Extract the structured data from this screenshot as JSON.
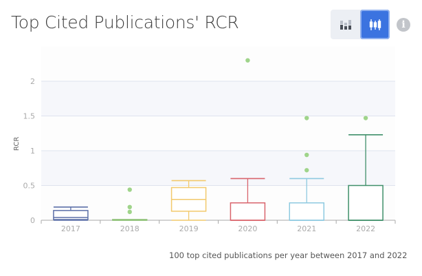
{
  "header": {
    "title": "Top Cited Publications' RCR",
    "toggle": [
      {
        "name": "stacked-bar-view",
        "icon": "stacked-bar-icon",
        "active": false
      },
      {
        "name": "box-plot-view",
        "icon": "box-plot-icon",
        "active": true
      }
    ],
    "info_icon": "info-icon"
  },
  "footnote": "100 top cited publications per year between 2017 and 2022",
  "colors": {
    "2017": "#5b6fa8",
    "2018": "#93c47d",
    "2019": "#f2c96b",
    "2020": "#d9646c",
    "2021": "#8ecae0",
    "2022": "#3f8f6a",
    "outlier": "#9fd48a",
    "band": "#f6f7fb",
    "band_alt": "#fdfdfd",
    "grid": "#dfe3ee",
    "accent": "#3b73e0"
  },
  "chart_data": {
    "type": "box",
    "title": "Top Cited Publications' RCR",
    "xlabel": "",
    "ylabel": "RCR",
    "ylim": [
      0,
      2.5
    ],
    "yticks": [
      0,
      0.5,
      1,
      1.5,
      2
    ],
    "ytick_labels": [
      "0",
      "0.5",
      "1",
      "1.5",
      "2"
    ],
    "grid": true,
    "categories": [
      "2017",
      "2018",
      "2019",
      "2020",
      "2021",
      "2022"
    ],
    "series": [
      {
        "name": "2017",
        "min": 0,
        "q1": 0.01,
        "median": 0.04,
        "q3": 0.14,
        "max": 0.19,
        "outliers": []
      },
      {
        "name": "2018",
        "min": 0,
        "q1": 0,
        "median": 0,
        "q3": 0.01,
        "max": 0.01,
        "outliers": [
          0.12,
          0.19,
          0.44
        ]
      },
      {
        "name": "2019",
        "min": 0,
        "q1": 0.13,
        "median": 0.3,
        "q3": 0.47,
        "max": 0.57,
        "outliers": []
      },
      {
        "name": "2020",
        "min": 0,
        "q1": 0,
        "median": 0,
        "q3": 0.25,
        "max": 0.6,
        "outliers": [
          2.3
        ]
      },
      {
        "name": "2021",
        "min": 0,
        "q1": 0,
        "median": 0,
        "q3": 0.25,
        "max": 0.6,
        "outliers": [
          0.72,
          0.94,
          1.47
        ]
      },
      {
        "name": "2022",
        "min": 0,
        "q1": 0,
        "median": 0,
        "q3": 0.5,
        "max": 1.23,
        "outliers": [
          1.47
        ]
      }
    ],
    "footnote": "100 top cited publications per year between 2017 and 2022"
  }
}
